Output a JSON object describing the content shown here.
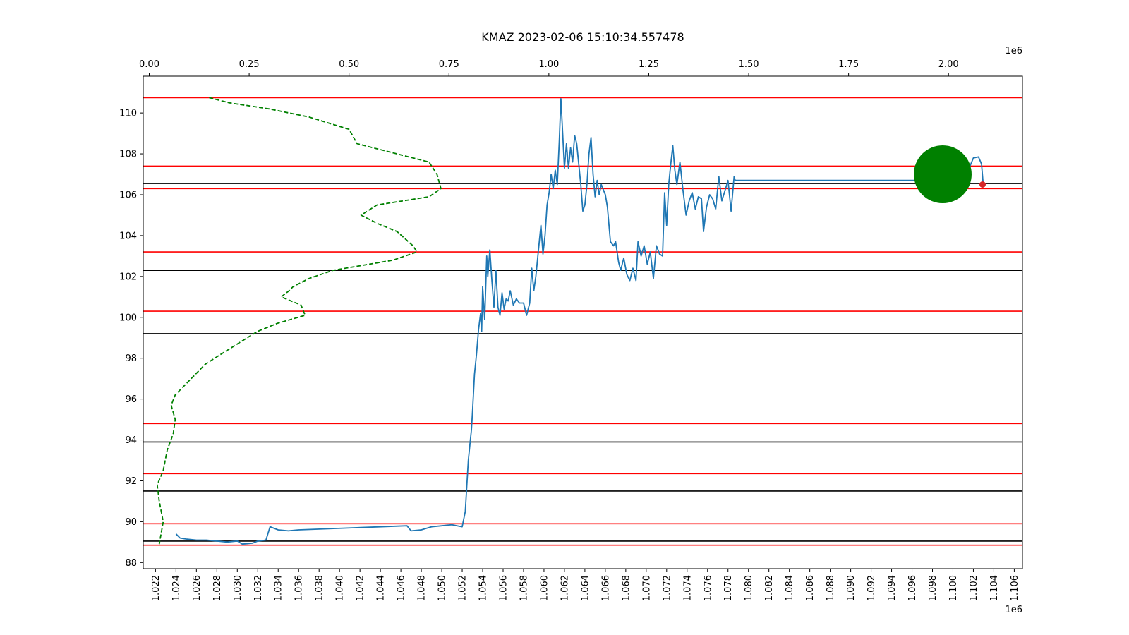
{
  "chart_data": {
    "type": "line",
    "title": "KMAZ 2023-02-06 15:10:34.557478",
    "xlabel": "",
    "ylabel": "",
    "grid": false,
    "bottom_axis": {
      "range": [
        1020800,
        1106800
      ],
      "ticks": [
        1022000,
        1024000,
        1026000,
        1028000,
        1030000,
        1032000,
        1034000,
        1036000,
        1038000,
        1040000,
        1042000,
        1044000,
        1046000,
        1048000,
        1050000,
        1052000,
        1054000,
        1056000,
        1058000,
        1060000,
        1062000,
        1064000,
        1066000,
        1068000,
        1070000,
        1072000,
        1074000,
        1076000,
        1078000,
        1080000,
        1082000,
        1084000,
        1086000,
        1088000,
        1090000,
        1092000,
        1094000,
        1096000,
        1098000,
        1100000,
        1102000,
        1104000,
        1106000
      ],
      "tick_labels": [
        "1.022",
        "1.024",
        "1.026",
        "1.028",
        "1.030",
        "1.032",
        "1.034",
        "1.036",
        "1.038",
        "1.040",
        "1.042",
        "1.044",
        "1.046",
        "1.048",
        "1.050",
        "1.052",
        "1.054",
        "1.056",
        "1.058",
        "1.060",
        "1.062",
        "1.064",
        "1.066",
        "1.068",
        "1.070",
        "1.072",
        "1.074",
        "1.076",
        "1.078",
        "1.080",
        "1.082",
        "1.084",
        "1.086",
        "1.088",
        "1.090",
        "1.092",
        "1.094",
        "1.096",
        "1.098",
        "1.100",
        "1.102",
        "1.104",
        "1.106"
      ],
      "scale_label": "1e6"
    },
    "top_axis": {
      "range": [
        -15000,
        2185000
      ],
      "ticks": [
        0,
        250000,
        500000,
        750000,
        1000000,
        1250000,
        1500000,
        1750000,
        2000000
      ],
      "tick_labels": [
        "0.00",
        "0.25",
        "0.50",
        "0.75",
        "1.00",
        "1.25",
        "1.50",
        "1.75",
        "2.00"
      ],
      "scale_label": "1e6"
    },
    "y_axis": {
      "range": [
        87.7,
        111.8
      ],
      "ticks": [
        88,
        90,
        92,
        94,
        96,
        98,
        100,
        102,
        104,
        106,
        108,
        110
      ],
      "tick_labels": [
        "88",
        "90",
        "92",
        "94",
        "96",
        "98",
        "100",
        "102",
        "104",
        "106",
        "108",
        "110"
      ]
    },
    "hlines_red": [
      110.75,
      107.4,
      106.3,
      103.2,
      100.3,
      94.8,
      92.35,
      89.9,
      88.85
    ],
    "hlines_black": [
      106.55,
      102.3,
      99.2,
      93.9,
      91.5,
      89.05
    ],
    "series": [
      {
        "color": "#1f77b4",
        "x_axis": "bottom",
        "points": [
          [
            1024000,
            89.4
          ],
          [
            1024400,
            89.2
          ],
          [
            1025000,
            89.15
          ],
          [
            1026000,
            89.1
          ],
          [
            1027000,
            89.1
          ],
          [
            1028000,
            89.05
          ],
          [
            1029000,
            89.0
          ],
          [
            1030000,
            89.05
          ],
          [
            1030500,
            88.9
          ],
          [
            1031500,
            88.95
          ],
          [
            1032000,
            89.05
          ],
          [
            1032800,
            89.1
          ],
          [
            1033200,
            89.75
          ],
          [
            1034000,
            89.6
          ],
          [
            1035000,
            89.55
          ],
          [
            1036000,
            89.6
          ],
          [
            1046600,
            89.8
          ],
          [
            1047000,
            89.55
          ],
          [
            1048000,
            89.6
          ],
          [
            1049000,
            89.75
          ],
          [
            1050000,
            89.8
          ],
          [
            1051000,
            89.85
          ],
          [
            1051500,
            89.8
          ],
          [
            1052000,
            89.75
          ],
          [
            1052300,
            90.5
          ],
          [
            1052600,
            93.0
          ],
          [
            1052900,
            94.5
          ],
          [
            1053000,
            95.3
          ],
          [
            1053200,
            97.2
          ],
          [
            1053400,
            98.2
          ],
          [
            1053600,
            99.4
          ],
          [
            1053800,
            100.2
          ],
          [
            1053900,
            99.3
          ],
          [
            1054000,
            101.5
          ],
          [
            1054200,
            99.9
          ],
          [
            1054400,
            103.0
          ],
          [
            1054500,
            102.0
          ],
          [
            1054700,
            103.3
          ],
          [
            1054900,
            101.8
          ],
          [
            1055100,
            100.5
          ],
          [
            1055300,
            102.3
          ],
          [
            1055500,
            100.5
          ],
          [
            1055700,
            100.1
          ],
          [
            1055900,
            101.2
          ],
          [
            1056100,
            100.4
          ],
          [
            1056300,
            100.9
          ],
          [
            1056500,
            100.8
          ],
          [
            1056700,
            101.3
          ],
          [
            1057000,
            100.6
          ],
          [
            1057300,
            100.9
          ],
          [
            1057600,
            100.7
          ],
          [
            1058000,
            100.7
          ],
          [
            1058300,
            100.1
          ],
          [
            1058600,
            100.7
          ],
          [
            1058800,
            102.4
          ],
          [
            1059000,
            101.3
          ],
          [
            1059200,
            102.0
          ],
          [
            1059500,
            103.5
          ],
          [
            1059700,
            104.5
          ],
          [
            1059900,
            103.1
          ],
          [
            1060100,
            104.0
          ],
          [
            1060300,
            105.5
          ],
          [
            1060500,
            106.1
          ],
          [
            1060700,
            107.0
          ],
          [
            1060900,
            106.3
          ],
          [
            1061100,
            107.2
          ],
          [
            1061300,
            106.5
          ],
          [
            1061500,
            108.7
          ],
          [
            1061650,
            110.7
          ],
          [
            1061800,
            109.3
          ],
          [
            1062000,
            107.3
          ],
          [
            1062200,
            108.5
          ],
          [
            1062400,
            107.3
          ],
          [
            1062600,
            108.3
          ],
          [
            1062800,
            107.6
          ],
          [
            1063000,
            108.9
          ],
          [
            1063200,
            108.5
          ],
          [
            1063400,
            107.5
          ],
          [
            1063600,
            106.5
          ],
          [
            1063800,
            105.2
          ],
          [
            1064000,
            105.5
          ],
          [
            1064200,
            106.5
          ],
          [
            1064400,
            108.0
          ],
          [
            1064600,
            108.8
          ],
          [
            1064800,
            107.0
          ],
          [
            1065000,
            105.9
          ],
          [
            1065200,
            106.7
          ],
          [
            1065400,
            106.0
          ],
          [
            1065600,
            106.5
          ],
          [
            1066000,
            106.0
          ],
          [
            1066200,
            105.4
          ],
          [
            1066500,
            103.7
          ],
          [
            1066800,
            103.5
          ],
          [
            1067000,
            103.7
          ],
          [
            1067300,
            102.7
          ],
          [
            1067500,
            102.3
          ],
          [
            1067800,
            102.9
          ],
          [
            1068100,
            102.1
          ],
          [
            1068400,
            101.8
          ],
          [
            1068700,
            102.4
          ],
          [
            1069000,
            101.8
          ],
          [
            1069200,
            103.7
          ],
          [
            1069500,
            103.0
          ],
          [
            1069800,
            103.5
          ],
          [
            1070100,
            102.6
          ],
          [
            1070400,
            103.2
          ],
          [
            1070700,
            101.9
          ],
          [
            1071000,
            103.5
          ],
          [
            1071300,
            103.1
          ],
          [
            1071600,
            103.0
          ],
          [
            1071800,
            106.1
          ],
          [
            1072000,
            104.5
          ],
          [
            1072200,
            106.5
          ],
          [
            1072400,
            107.5
          ],
          [
            1072600,
            108.4
          ],
          [
            1072800,
            107.2
          ],
          [
            1073000,
            106.5
          ],
          [
            1073300,
            107.6
          ],
          [
            1073600,
            106.2
          ],
          [
            1073900,
            105.0
          ],
          [
            1074200,
            105.7
          ],
          [
            1074500,
            106.1
          ],
          [
            1074800,
            105.3
          ],
          [
            1075100,
            105.9
          ],
          [
            1075400,
            105.8
          ],
          [
            1075600,
            104.2
          ],
          [
            1075900,
            105.4
          ],
          [
            1076200,
            106.0
          ],
          [
            1076500,
            105.8
          ],
          [
            1076800,
            105.3
          ],
          [
            1077100,
            106.9
          ],
          [
            1077400,
            105.7
          ],
          [
            1077700,
            106.2
          ],
          [
            1078000,
            106.7
          ],
          [
            1078300,
            105.2
          ],
          [
            1078600,
            106.9
          ],
          [
            1078700,
            106.7
          ],
          [
            1099000,
            106.7
          ],
          [
            1099100,
            106.95
          ],
          [
            1100000,
            107.0
          ],
          [
            1101000,
            106.9
          ],
          [
            1101500,
            107.2
          ],
          [
            1102000,
            107.8
          ],
          [
            1102500,
            107.85
          ],
          [
            1102800,
            107.5
          ],
          [
            1102950,
            106.6
          ]
        ]
      },
      {
        "color": "#008000",
        "style": "dashed",
        "x_axis": "top",
        "points": [
          [
            150000,
            110.75
          ],
          [
            200000,
            110.5
          ],
          [
            300000,
            110.2
          ],
          [
            400000,
            109.8
          ],
          [
            500000,
            109.2
          ],
          [
            520000,
            108.5
          ],
          [
            620000,
            108.0
          ],
          [
            700000,
            107.6
          ],
          [
            720000,
            107.0
          ],
          [
            730000,
            106.3
          ],
          [
            700000,
            105.9
          ],
          [
            570000,
            105.5
          ],
          [
            530000,
            105.0
          ],
          [
            570000,
            104.6
          ],
          [
            620000,
            104.2
          ],
          [
            660000,
            103.5
          ],
          [
            670000,
            103.2
          ],
          [
            610000,
            102.8
          ],
          [
            550000,
            102.6
          ],
          [
            460000,
            102.3
          ],
          [
            400000,
            101.9
          ],
          [
            360000,
            101.5
          ],
          [
            350000,
            101.3
          ],
          [
            330000,
            101.0
          ],
          [
            380000,
            100.6
          ],
          [
            390000,
            100.1
          ],
          [
            320000,
            99.7
          ],
          [
            270000,
            99.3
          ],
          [
            180000,
            98.2
          ],
          [
            140000,
            97.7
          ],
          [
            90000,
            96.7
          ],
          [
            65000,
            96.2
          ],
          [
            55000,
            95.7
          ],
          [
            65000,
            95.0
          ],
          [
            60000,
            94.3
          ],
          [
            45000,
            93.5
          ],
          [
            35000,
            92.5
          ],
          [
            20000,
            91.8
          ],
          [
            25000,
            91.0
          ],
          [
            35000,
            90.0
          ],
          [
            25000,
            88.9
          ]
        ]
      }
    ],
    "markers": [
      {
        "color": "#008000",
        "x": 1099000,
        "y": 107.0
      },
      {
        "color": "#d62728",
        "x": 1102900,
        "y": 106.5
      }
    ]
  }
}
